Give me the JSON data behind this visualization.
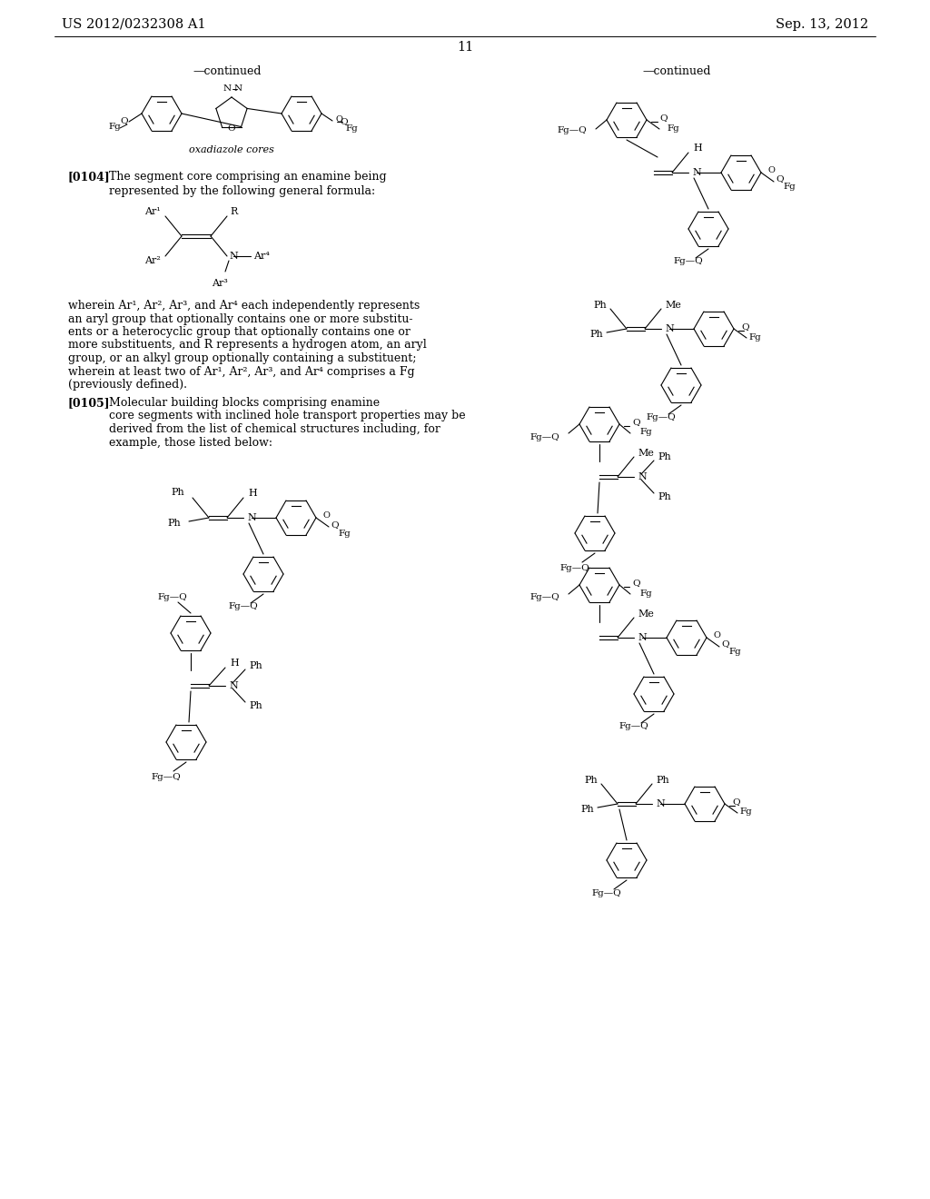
{
  "page_header_left": "US 2012/0232308 A1",
  "page_header_right": "Sep. 13, 2012",
  "page_number": "11",
  "background_color": "#ffffff",
  "text_color": "#000000"
}
